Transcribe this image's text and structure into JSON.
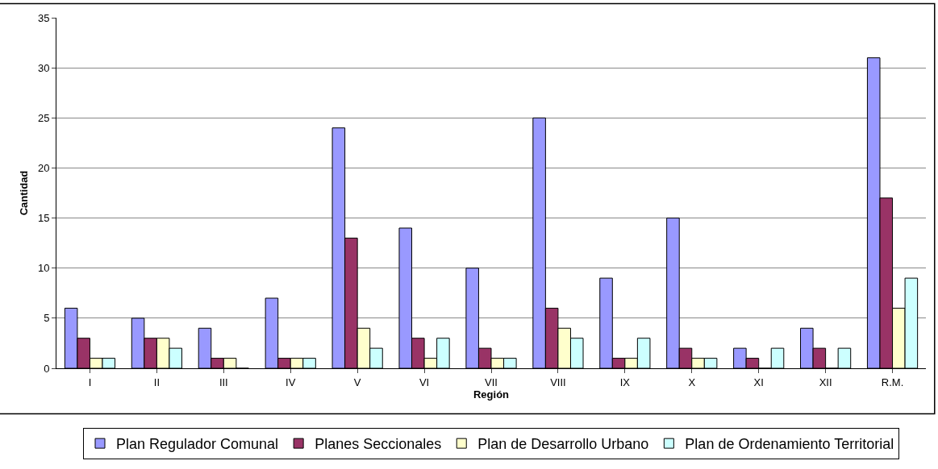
{
  "chart_data": {
    "type": "bar",
    "xlabel": "Región",
    "ylabel": "Cantidad",
    "categories": [
      "I",
      "II",
      "III",
      "IV",
      "V",
      "VI",
      "VII",
      "VIII",
      "IX",
      "X",
      "XI",
      "XII",
      "R.M."
    ],
    "series": [
      {
        "name": "Plan Regulador Comunal",
        "color": "#9999ff",
        "values": [
          6,
          5,
          4,
          7,
          24,
          14,
          10,
          25,
          9,
          15,
          2,
          4,
          31
        ]
      },
      {
        "name": "Planes Seccionales",
        "color": "#993366",
        "values": [
          3,
          3,
          1,
          1,
          13,
          3,
          2,
          6,
          1,
          2,
          1,
          2,
          17
        ]
      },
      {
        "name": "Plan de Desarrollo Urbano",
        "color": "#ffffcc",
        "values": [
          1,
          3,
          1,
          1,
          4,
          1,
          1,
          4,
          1,
          1,
          0,
          0,
          6
        ]
      },
      {
        "name": "Plan de Ordenamiento Territorial",
        "color": "#ccffff",
        "values": [
          1,
          2,
          0,
          1,
          2,
          3,
          1,
          3,
          3,
          1,
          2,
          2,
          9
        ]
      }
    ],
    "ylim": [
      0,
      35
    ],
    "yticks": [
      0,
      5,
      10,
      15,
      20,
      25,
      30,
      35
    ],
    "grid": "y",
    "legend": "bottom"
  }
}
